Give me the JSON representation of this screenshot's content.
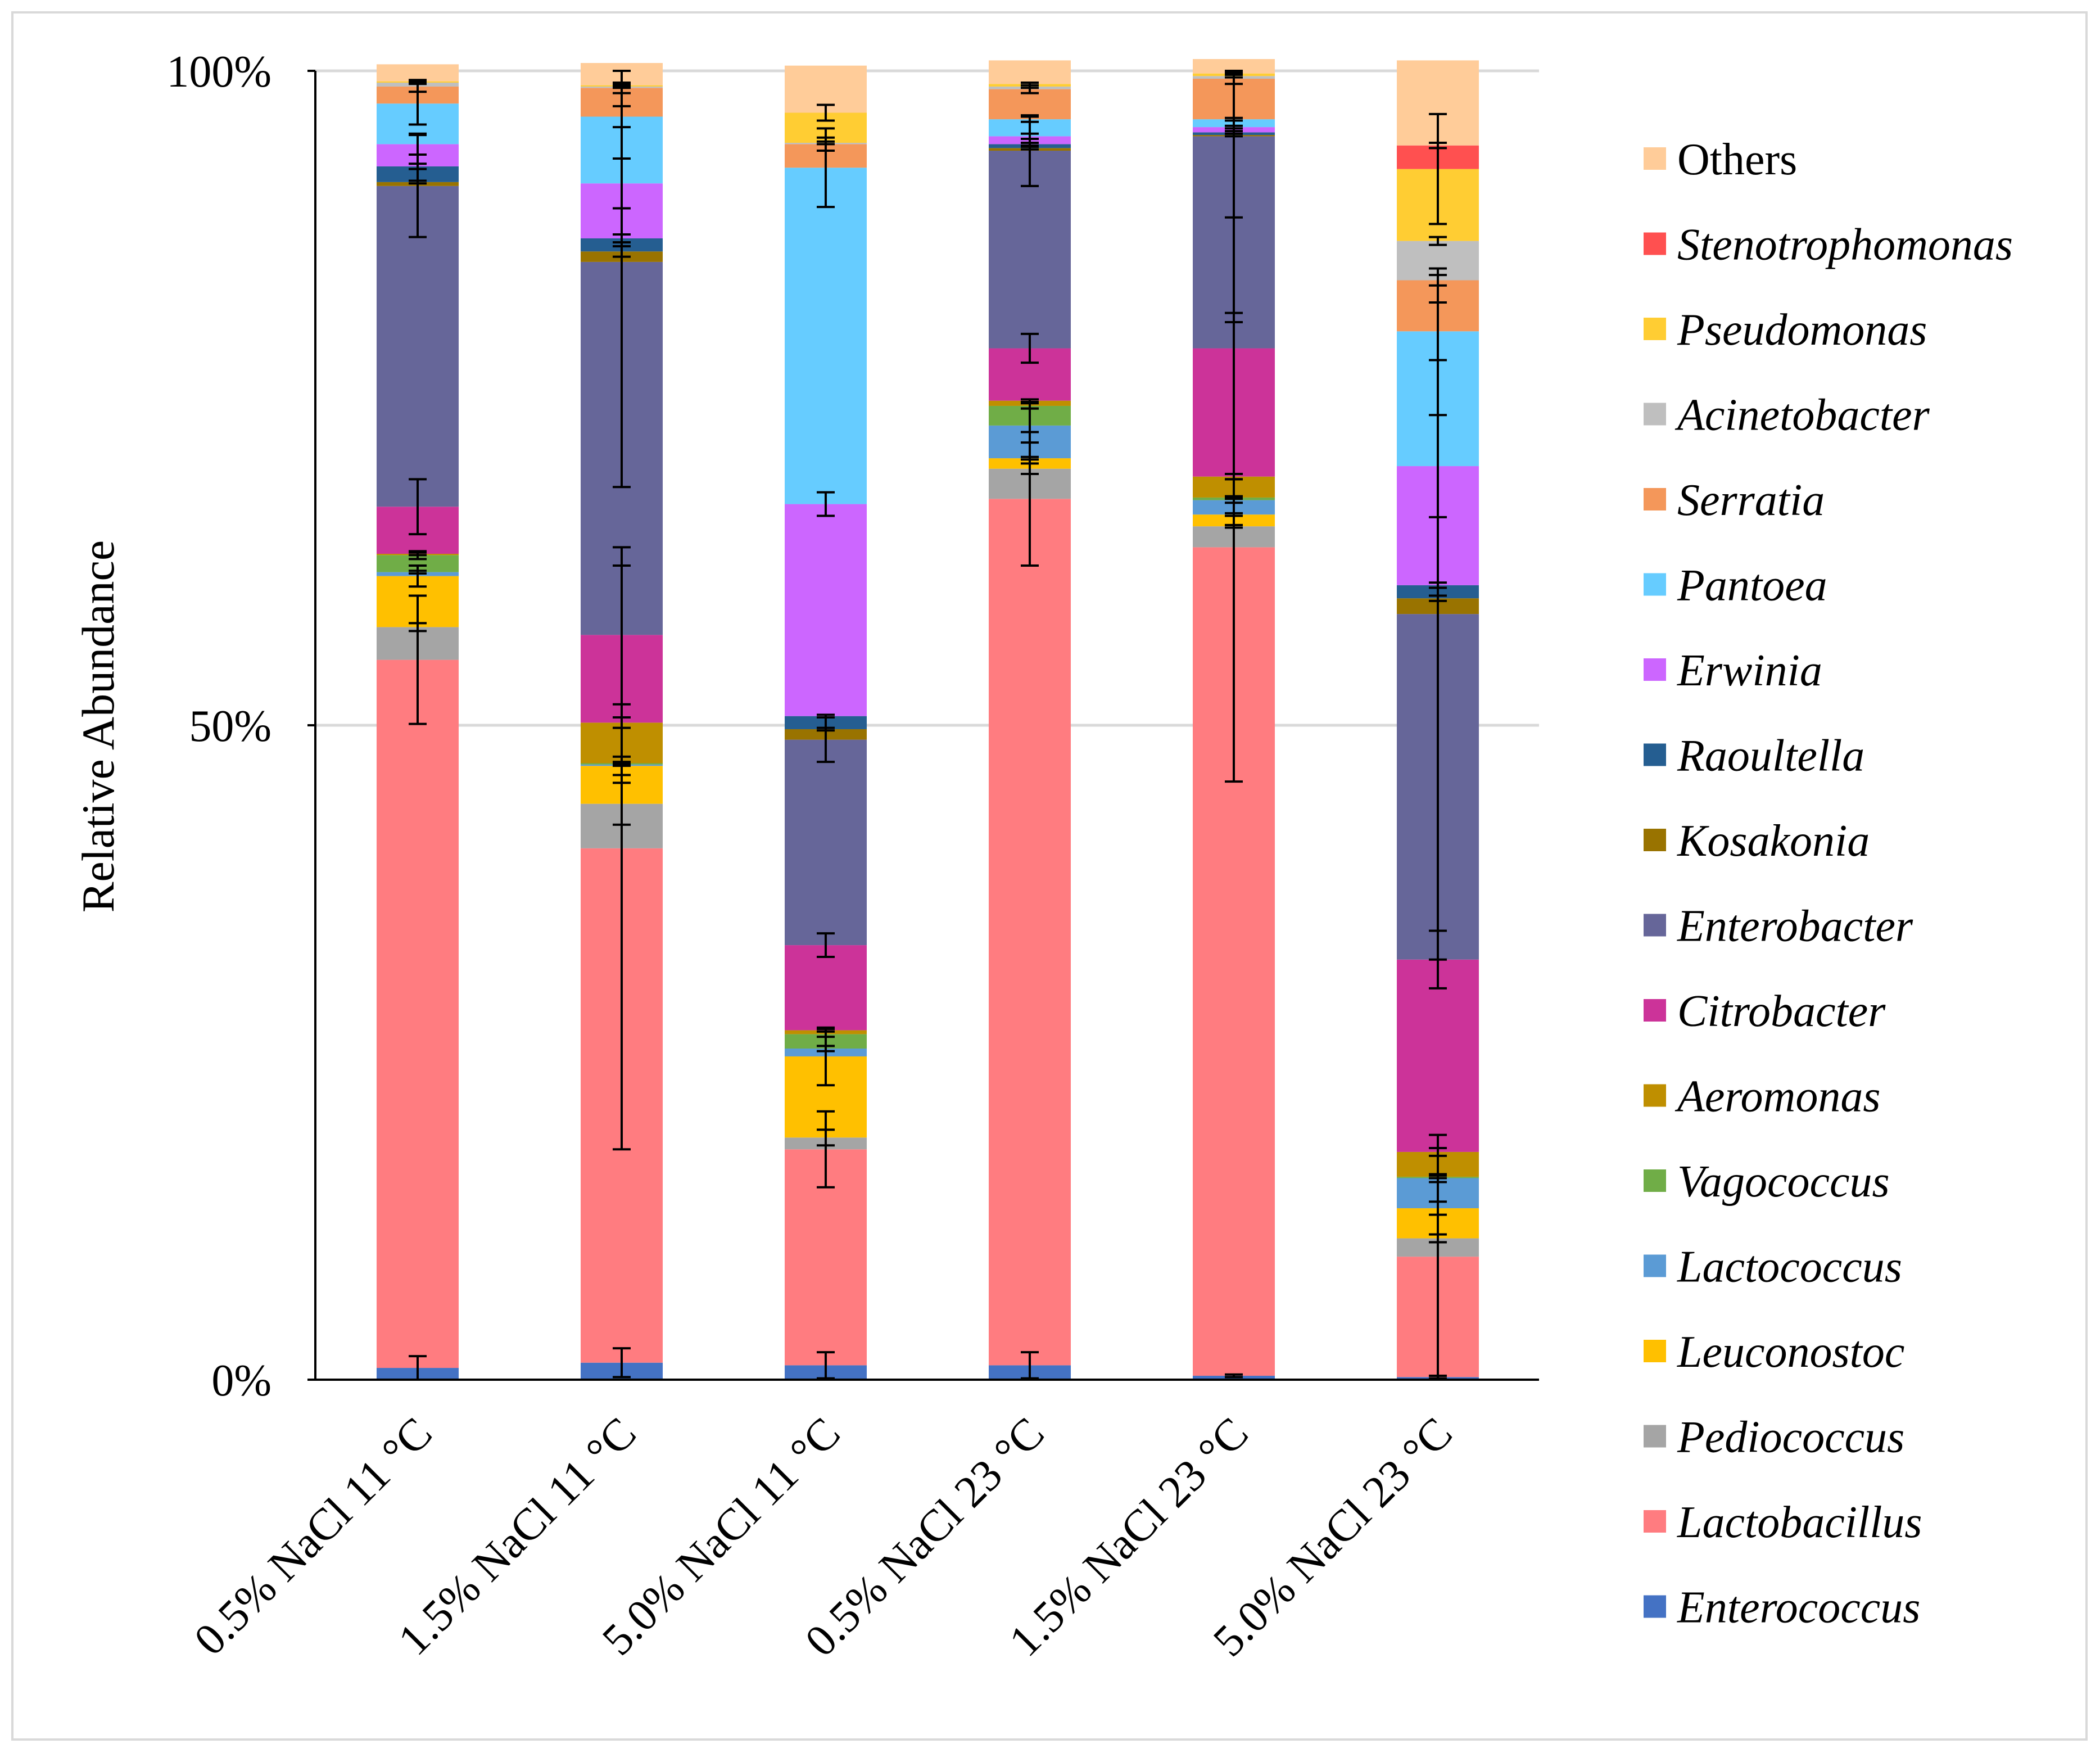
{
  "chart_data": {
    "type": "bar",
    "stacked": true,
    "normalized": true,
    "ylabel": "Relative Abundance",
    "xlabel": "",
    "ylim": [
      0,
      100
    ],
    "y_ticks": [
      {
        "value": 0,
        "label": "0%"
      },
      {
        "value": 50,
        "label": "50%"
      },
      {
        "value": 100,
        "label": "100%"
      }
    ],
    "categories": [
      "0.5% NaCl 11 °C",
      "1.5% NaCl 11 °C",
      "5.0% NaCl 11 °C",
      "0.5% NaCl 23 °C",
      "1.5% NaCl 23 °C",
      "5.0% NaCl 23 °C"
    ],
    "legend_position": "right",
    "gridlines": true,
    "series": [
      {
        "name": "Enterococcus",
        "italic": true,
        "color": "#4472c4",
        "values": [
          0.9,
          1.3,
          1.1,
          1.1,
          0.3,
          0.2
        ],
        "errors": [
          0.9,
          1.1,
          1.0,
          1.0,
          0.1,
          0.1
        ]
      },
      {
        "name": "Lactobacillus",
        "italic": true,
        "color": "#ff7c80",
        "values": [
          54.1,
          39.3,
          16.5,
          66.2,
          63.3,
          9.2
        ],
        "errors": [
          4.9,
          23.0,
          2.9,
          5.1,
          17.9,
          9.3
        ]
      },
      {
        "name": "Pediococcus",
        "italic": true,
        "color": "#a5a5a5",
        "values": [
          2.5,
          3.4,
          0.9,
          2.3,
          1.6,
          1.4
        ],
        "errors": [
          0.3,
          1.6,
          0.6,
          0.4,
          0.1,
          0.3
        ]
      },
      {
        "name": "Leuconostoc",
        "italic": true,
        "color": "#ffc000",
        "values": [
          3.9,
          2.9,
          6.2,
          0.8,
          0.9,
          2.3
        ],
        "errors": [
          0.8,
          0.7,
          2.2,
          0.1,
          0.1,
          0.5
        ]
      },
      {
        "name": "Lactococcus",
        "italic": true,
        "color": "#5b9bd5",
        "values": [
          0.3,
          0.1,
          0.6,
          2.5,
          1.1,
          2.3
        ],
        "errors": [
          0.1,
          0.1,
          0.2,
          1.3,
          0.2,
          0.3
        ]
      },
      {
        "name": "Vagococcus",
        "italic": true,
        "color": "#70ad47",
        "values": [
          1.3,
          0.1,
          1.1,
          1.5,
          0.2,
          0.1
        ],
        "errors": [
          0.3,
          0.1,
          0.2,
          0.2,
          0.1,
          0.1
        ]
      },
      {
        "name": "Aeromonas",
        "italic": true,
        "color": "#bf8f00",
        "values": [
          0.1,
          3.1,
          0.3,
          0.4,
          1.6,
          1.9
        ],
        "errors": [
          0.1,
          0.4,
          0.1,
          0.1,
          0.2,
          0.3
        ]
      },
      {
        "name": "Citrobacter",
        "italic": true,
        "color": "#cc3399",
        "values": [
          3.6,
          6.7,
          6.5,
          4.0,
          9.8,
          14.7
        ],
        "errors": [
          2.1,
          5.3,
          0.9,
          1.1,
          10.0,
          2.2
        ]
      },
      {
        "name": "Enterobacter",
        "italic": true,
        "color": "#666699",
        "values": [
          24.5,
          28.5,
          15.7,
          15.1,
          16.2,
          26.4
        ],
        "errors": [
          3.9,
          17.2,
          1.7,
          2.7,
          14.2,
          26.4
        ]
      },
      {
        "name": "Kosakonia",
        "italic": true,
        "color": "#997300",
        "values": [
          0.3,
          0.8,
          0.8,
          0.2,
          0.1,
          1.2
        ],
        "errors": [
          0.1,
          0.4,
          0.1,
          0.1,
          0.1,
          0.2
        ]
      },
      {
        "name": "Raoultella",
        "italic": true,
        "color": "#255e91",
        "values": [
          1.2,
          1.0,
          1.0,
          0.3,
          0.2,
          1.0
        ],
        "errors": [
          0.2,
          0.3,
          0.1,
          0.1,
          0.1,
          0.2
        ]
      },
      {
        "name": "Erwinia",
        "italic": true,
        "color": "#cc66ff",
        "values": [
          1.7,
          4.2,
          16.2,
          0.6,
          0.4,
          9.1
        ],
        "errors": [
          0.8,
          1.9,
          0.9,
          0.2,
          0.1,
          3.9
        ]
      },
      {
        "name": "Pantoea",
        "italic": true,
        "color": "#66ccff",
        "values": [
          3.1,
          5.1,
          25.7,
          1.3,
          0.6,
          10.3
        ],
        "errors": [
          1.6,
          0.8,
          3.0,
          0.2,
          0.1,
          2.2
        ]
      },
      {
        "name": "Serratia",
        "italic": true,
        "color": "#f4975a",
        "values": [
          1.3,
          2.2,
          1.8,
          2.3,
          3.1,
          3.9
        ],
        "errors": [
          0.4,
          0.4,
          0.5,
          0.3,
          0.4,
          0.4
        ]
      },
      {
        "name": "Acinetobacter",
        "italic": true,
        "color": "#bfbfbf",
        "values": [
          0.3,
          0.1,
          0.1,
          0.2,
          0.2,
          3.0
        ],
        "errors": [
          0.1,
          0.1,
          0.1,
          0.1,
          0.1,
          0.3
        ]
      },
      {
        "name": "Pseudomonas",
        "italic": true,
        "color": "#ffcd33",
        "values": [
          0.1,
          0.1,
          2.3,
          0.2,
          0.2,
          5.5
        ],
        "errors": [
          0.1,
          0.1,
          0.6,
          0.1,
          0.1,
          4.2
        ]
      },
      {
        "name": "Stenotrophomonas",
        "italic": true,
        "color": "#ff5050",
        "values": [
          0,
          0,
          0,
          0,
          0,
          1.8
        ],
        "errors": [
          0,
          0,
          0,
          0,
          0,
          0.2
        ]
      },
      {
        "name": "Others",
        "italic": false,
        "color": "#ffcc99",
        "values": [
          1.3,
          1.7,
          3.6,
          1.8,
          1.1,
          6.5
        ],
        "errors": [
          0,
          0,
          0,
          0,
          0,
          0
        ]
      }
    ]
  }
}
